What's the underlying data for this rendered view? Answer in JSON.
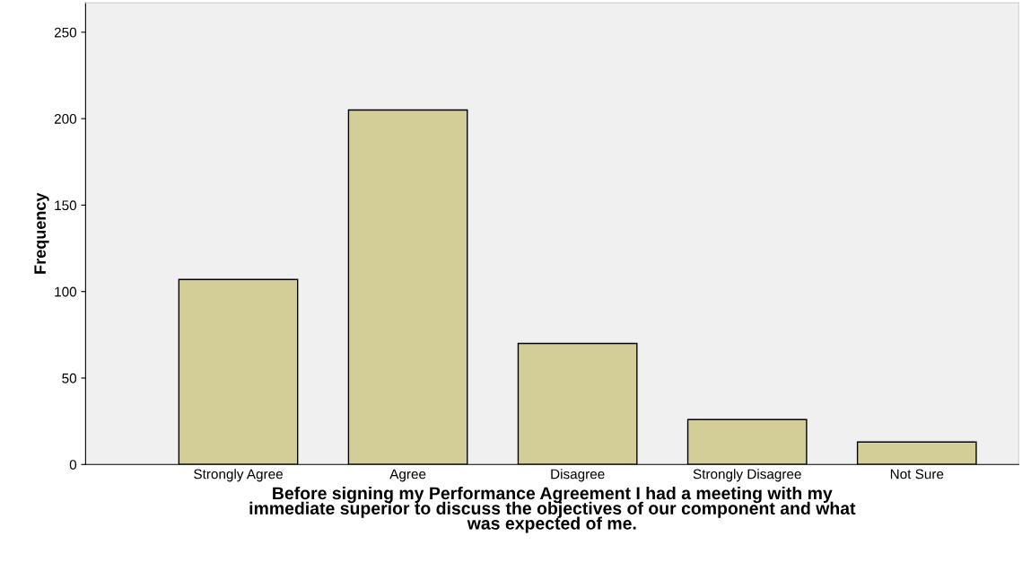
{
  "chart_data": {
    "type": "bar",
    "xlabel": "Before signing my Performance Agreement I had a meeting with my\nimmediate superior to discuss the objectives of our component and what\nwas expected of me.",
    "ylabel": "Frequency",
    "categories": [
      "Strongly Agree",
      "Agree",
      "Disagree",
      "Strongly Disagree",
      "Not Sure"
    ],
    "values": [
      107,
      205,
      70,
      26,
      13
    ],
    "color": "#d3ce97",
    "ylim": [
      0,
      267
    ],
    "yticks": [
      0,
      50,
      100,
      150,
      200,
      250
    ],
    "grid": false,
    "legend": false
  }
}
